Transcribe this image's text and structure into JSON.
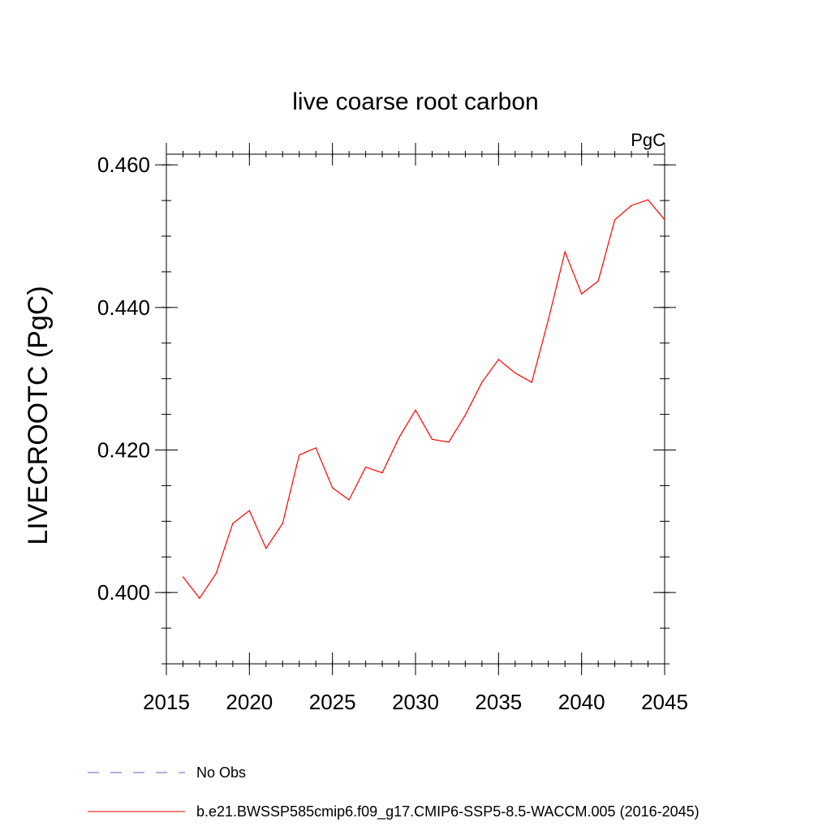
{
  "chart_data": {
    "type": "line",
    "title": "live coarse root carbon",
    "units": "PgC",
    "xlabel": "",
    "ylabel": "LIVECROOTC  (PgC)",
    "xlim": [
      2015,
      2045
    ],
    "ylim": [
      0.39,
      0.4615
    ],
    "x_ticks": [
      2015,
      2020,
      2025,
      2030,
      2035,
      2040,
      2045
    ],
    "x_tick_labels": [
      "2015",
      "2020",
      "2025",
      "2030",
      "2035",
      "2040",
      "2045"
    ],
    "y_ticks": [
      0.4,
      0.42,
      0.44,
      0.46
    ],
    "y_tick_labels": [
      "0.400",
      "0.420",
      "0.440",
      "0.460"
    ],
    "y_minor_step": 0.005,
    "x_minor_step": 1,
    "series": [
      {
        "name": "b.e21.BWSSP585cmip6.f09_g17.CMIP6-SSP5-8.5-WACCM.005 (2016-2045)",
        "color": "#ff0000",
        "style": "solid",
        "x": [
          2016,
          2017,
          2018,
          2019,
          2020,
          2021,
          2022,
          2023,
          2024,
          2025,
          2026,
          2027,
          2028,
          2029,
          2030,
          2031,
          2032,
          2033,
          2034,
          2035,
          2036,
          2037,
          2038,
          2039,
          2040,
          2041,
          2042,
          2043,
          2044,
          2045
        ],
        "values": [
          0.4022,
          0.3992,
          0.4027,
          0.4097,
          0.4115,
          0.4062,
          0.4097,
          0.4193,
          0.4203,
          0.4147,
          0.413,
          0.4176,
          0.4168,
          0.4217,
          0.4256,
          0.4215,
          0.4211,
          0.4249,
          0.4295,
          0.4327,
          0.4308,
          0.4295,
          0.4383,
          0.4478,
          0.4419,
          0.4437,
          0.4523,
          0.4543,
          0.4551,
          0.4523
        ]
      }
    ],
    "legend": [
      {
        "label": "No Obs",
        "color": "#6a5acd",
        "style": "dashed"
      },
      {
        "label": "b.e21.BWSSP585cmip6.f09_g17.CMIP6-SSP5-8.5-WACCM.005 (2016-2045)",
        "color": "#ff0000",
        "style": "solid"
      }
    ],
    "grid": false,
    "legend_position": "bottom"
  }
}
